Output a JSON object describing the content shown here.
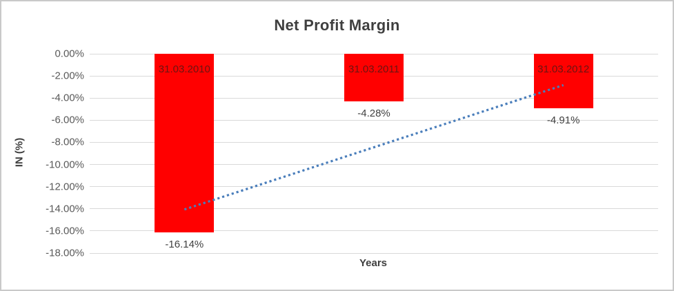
{
  "window": {
    "background": "#ffffff",
    "border_color": "#c9c9c9"
  },
  "chart_data": {
    "type": "bar",
    "title": "Net Profit Margin",
    "xlabel": "Years",
    "ylabel": "IN (%)",
    "categories": [
      "31.03.2010",
      "31.03.2011",
      "31.03.2012"
    ],
    "values": [
      -16.14,
      -4.28,
      -4.91
    ],
    "value_labels": [
      "-16.14%",
      "-4.28%",
      "-4.91%"
    ],
    "ylim": [
      -18,
      0
    ],
    "ytick_step": 2,
    "ytick_labels": [
      "0.00%",
      "-2.00%",
      "-4.00%",
      "-6.00%",
      "-8.00%",
      "-10.00%",
      "-12.00%",
      "-14.00%",
      "-16.00%",
      "-18.00%"
    ],
    "grid": true,
    "legend_position": "none",
    "bar_color": "#ff0000",
    "category_label_color": "#6b1512",
    "value_label_color": "#404040",
    "tick_label_color": "#595959",
    "title_color": "#3f3f3f",
    "gridline_color": "#d9d9d9",
    "trendline": {
      "type": "linear",
      "style": "dotted",
      "color": "#4a7ebb",
      "y_start": -14.06,
      "y_end": -2.83
    }
  }
}
